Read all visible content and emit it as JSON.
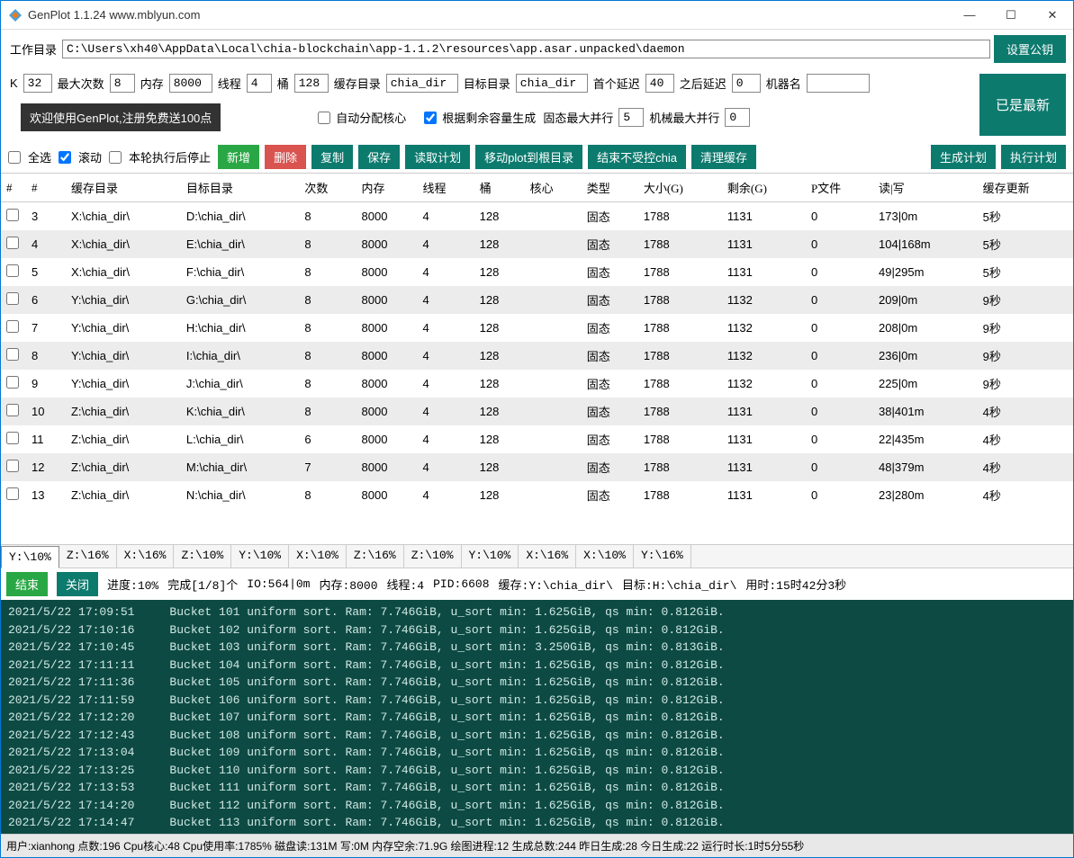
{
  "window": {
    "title": "GenPlot 1.1.24 www.mblyun.com"
  },
  "colors": {
    "primary": "#0d7a6e",
    "green": "#2aa745",
    "red": "#d9534f",
    "log_bg": "#0d4a43",
    "log_fg": "#d0e8e4"
  },
  "config": {
    "work_dir_label": "工作目录",
    "work_dir": "C:\\Users\\xh40\\AppData\\Local\\chia-blockchain\\app-1.1.2\\resources\\app.asar.unpacked\\daemon",
    "set_pubkey": "设置公钥",
    "k_label": "K",
    "k_value": "32",
    "max_label": "最大次数",
    "max_value": "8",
    "mem_label": "内存",
    "mem_value": "8000",
    "thread_label": "线程",
    "thread_value": "4",
    "bucket_label": "桶",
    "bucket_value": "128",
    "cache_dir_label": "缓存目录",
    "cache_dir": "chia_dir",
    "target_dir_label": "目标目录",
    "target_dir": "chia_dir",
    "first_delay_label": "首个延迟",
    "first_delay": "40",
    "after_delay_label": "之后延迟",
    "after_delay": "0",
    "machine_label": "机器名",
    "machine_value": "",
    "latest_btn": "已是最新",
    "banner": "欢迎使用GenPlot,注册免费送100点",
    "auto_core": "自动分配核心",
    "gen_remain": "根据剩余容量生成",
    "ssd_max_label": "固态最大并行",
    "ssd_max": "5",
    "hdd_max_label": "机械最大并行",
    "hdd_max": "0"
  },
  "toolbar": {
    "select_all": "全选",
    "scroll": "滚动",
    "stop_after": "本轮执行后停止",
    "add": "新增",
    "del": "删除",
    "copy": "复制",
    "save": "保存",
    "read_plan": "读取计划",
    "move_plot": "移动plot到根目录",
    "end_uncontrolled": "结束不受控chia",
    "clear_cache": "清理缓存",
    "gen_plan": "生成计划",
    "exec_plan": "执行计划"
  },
  "headers": [
    "#",
    "#",
    "缓存目录",
    "目标目录",
    "次数",
    "内存",
    "线程",
    "桶",
    "核心",
    "类型",
    "大小(G)",
    "剩余(G)",
    "P文件",
    "读|写",
    "缓存更新"
  ],
  "rows": [
    [
      "3",
      "X:\\chia_dir\\",
      "D:\\chia_dir\\",
      "8",
      "8000",
      "4",
      "128",
      "",
      "固态",
      "1788",
      "1131",
      "0",
      "173|0m",
      "5秒"
    ],
    [
      "4",
      "X:\\chia_dir\\",
      "E:\\chia_dir\\",
      "8",
      "8000",
      "4",
      "128",
      "",
      "固态",
      "1788",
      "1131",
      "0",
      "104|168m",
      "5秒"
    ],
    [
      "5",
      "X:\\chia_dir\\",
      "F:\\chia_dir\\",
      "8",
      "8000",
      "4",
      "128",
      "",
      "固态",
      "1788",
      "1131",
      "0",
      "49|295m",
      "5秒"
    ],
    [
      "6",
      "Y:\\chia_dir\\",
      "G:\\chia_dir\\",
      "8",
      "8000",
      "4",
      "128",
      "",
      "固态",
      "1788",
      "1132",
      "0",
      "209|0m",
      "9秒"
    ],
    [
      "7",
      "Y:\\chia_dir\\",
      "H:\\chia_dir\\",
      "8",
      "8000",
      "4",
      "128",
      "",
      "固态",
      "1788",
      "1132",
      "0",
      "208|0m",
      "9秒"
    ],
    [
      "8",
      "Y:\\chia_dir\\",
      "I:\\chia_dir\\",
      "8",
      "8000",
      "4",
      "128",
      "",
      "固态",
      "1788",
      "1132",
      "0",
      "236|0m",
      "9秒"
    ],
    [
      "9",
      "Y:\\chia_dir\\",
      "J:\\chia_dir\\",
      "8",
      "8000",
      "4",
      "128",
      "",
      "固态",
      "1788",
      "1132",
      "0",
      "225|0m",
      "9秒"
    ],
    [
      "10",
      "Z:\\chia_dir\\",
      "K:\\chia_dir\\",
      "8",
      "8000",
      "4",
      "128",
      "",
      "固态",
      "1788",
      "1131",
      "0",
      "38|401m",
      "4秒"
    ],
    [
      "11",
      "Z:\\chia_dir\\",
      "L:\\chia_dir\\",
      "6",
      "8000",
      "4",
      "128",
      "",
      "固态",
      "1788",
      "1131",
      "0",
      "22|435m",
      "4秒"
    ],
    [
      "12",
      "Z:\\chia_dir\\",
      "M:\\chia_dir\\",
      "7",
      "8000",
      "4",
      "128",
      "",
      "固态",
      "1788",
      "1131",
      "0",
      "48|379m",
      "4秒"
    ],
    [
      "13",
      "Z:\\chia_dir\\",
      "N:\\chia_dir\\",
      "8",
      "8000",
      "4",
      "128",
      "",
      "固态",
      "1788",
      "1131",
      "0",
      "23|280m",
      "4秒"
    ]
  ],
  "tabs": [
    "Y:\\10%",
    "Z:\\16%",
    "X:\\16%",
    "Z:\\10%",
    "Y:\\10%",
    "X:\\10%",
    "Z:\\16%",
    "Z:\\10%",
    "Y:\\10%",
    "X:\\16%",
    "X:\\10%",
    "Y:\\16%"
  ],
  "logbar": {
    "end": "结束",
    "close": "关闭",
    "progress": "进度:10%",
    "done": "完成[1/8]个",
    "io": "IO:564|0m",
    "mem": "内存:8000",
    "thread": "线程:4",
    "pid": "PID:6608",
    "cache": "缓存:Y:\\chia_dir\\",
    "target": "目标:H:\\chia_dir\\",
    "elapsed": "用时:15时42分3秒"
  },
  "log": "2021/5/22 17:09:51     Bucket 101 uniform sort. Ram: 7.746GiB, u_sort min: 1.625GiB, qs min: 0.812GiB.\n2021/5/22 17:10:16     Bucket 102 uniform sort. Ram: 7.746GiB, u_sort min: 1.625GiB, qs min: 0.812GiB.\n2021/5/22 17:10:45     Bucket 103 uniform sort. Ram: 7.746GiB, u_sort min: 3.250GiB, qs min: 0.813GiB.\n2021/5/22 17:11:11     Bucket 104 uniform sort. Ram: 7.746GiB, u_sort min: 1.625GiB, qs min: 0.812GiB.\n2021/5/22 17:11:36     Bucket 105 uniform sort. Ram: 7.746GiB, u_sort min: 1.625GiB, qs min: 0.812GiB.\n2021/5/22 17:11:59     Bucket 106 uniform sort. Ram: 7.746GiB, u_sort min: 1.625GiB, qs min: 0.812GiB.\n2021/5/22 17:12:20     Bucket 107 uniform sort. Ram: 7.746GiB, u_sort min: 1.625GiB, qs min: 0.812GiB.\n2021/5/22 17:12:43     Bucket 108 uniform sort. Ram: 7.746GiB, u_sort min: 1.625GiB, qs min: 0.812GiB.\n2021/5/22 17:13:04     Bucket 109 uniform sort. Ram: 7.746GiB, u_sort min: 1.625GiB, qs min: 0.812GiB.\n2021/5/22 17:13:25     Bucket 110 uniform sort. Ram: 7.746GiB, u_sort min: 1.625GiB, qs min: 0.812GiB.\n2021/5/22 17:13:53     Bucket 111 uniform sort. Ram: 7.746GiB, u_sort min: 1.625GiB, qs min: 0.812GiB.\n2021/5/22 17:14:20     Bucket 112 uniform sort. Ram: 7.746GiB, u_sort min: 1.625GiB, qs min: 0.812GiB.\n2021/5/22 17:14:47     Bucket 113 uniform sort. Ram: 7.746GiB, u_sort min: 1.625GiB, qs min: 0.812GiB.",
  "status": "用户:xianhong 点数:196  Cpu核心:48 Cpu使用率:1785% 磁盘读:131M 写:0M 内存空余:71.9G 绘图进程:12 生成总数:244 昨日生成:28 今日生成:22  运行时长:1时5分55秒"
}
